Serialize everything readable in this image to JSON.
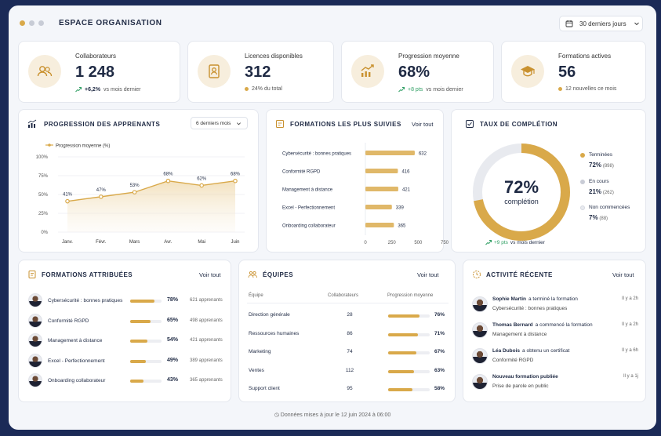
{
  "header": {
    "title": "ESPACE ORGANISATION",
    "period": "30 derniers jours"
  },
  "kpis": [
    {
      "label": "Collaborateurs",
      "value": "1 248",
      "delta": "+6,2%",
      "sub": "vs mois dernier",
      "icon": "users-icon"
    },
    {
      "label": "Licences disponibles",
      "value": "312",
      "delta": "",
      "sub": "24% du total",
      "icon": "license-icon"
    },
    {
      "label": "Progression moyenne",
      "value": "68%",
      "delta": "+8 pts",
      "sub": "vs mois dernier",
      "icon": "trend-up-icon"
    },
    {
      "label": "Formations actives",
      "value": "56",
      "delta": "",
      "sub": "12 nouvelles ce mois",
      "icon": "graduation-cap-icon"
    }
  ],
  "progression": {
    "title": "PROGRESSION DES APPRENANTS",
    "filter": "6 derniers mois"
  },
  "chart_data": {
    "type": "area",
    "categories": [
      "Janv.",
      "Févr.",
      "Mars",
      "Avr.",
      "Mai",
      "Juin"
    ],
    "series": [
      {
        "name": "Progression moyenne (%)",
        "values": [
          41,
          47,
          53,
          68,
          62,
          68
        ]
      }
    ],
    "data_labels": [
      "41%",
      "47%",
      "53%",
      "68%",
      "62%",
      "68%"
    ],
    "yticks": [
      "100%",
      "75%",
      "50%",
      "25%",
      "0%"
    ],
    "ylim": [
      0,
      100
    ],
    "grid": true,
    "legend": "top-left",
    "color": "#d9a94a"
  },
  "top_trainings": {
    "title": "FORMATIONS LES PLUS SUIVIES",
    "link": "Voir tout",
    "items": [
      {
        "label": "Cybersécurité : bonnes pratiques",
        "value": 632,
        "display": "632"
      },
      {
        "label": "Conformité RGPD",
        "value": 416,
        "display": "416"
      },
      {
        "label": "Management à distance",
        "value": 421,
        "display": "421"
      },
      {
        "label": "Excel - Perfectionnement",
        "value": 339,
        "display": "339"
      },
      {
        "label": "Onboarding collaborateur",
        "value": 365,
        "display": "365"
      }
    ],
    "ticks": [
      "0",
      "250",
      "500",
      "750"
    ],
    "xmax": 750
  },
  "completion": {
    "title": "TAUX DE COMPLÉTION",
    "value": "72%",
    "caption": "complétion",
    "rate": 72,
    "legend": [
      {
        "label": "Terminées",
        "pct": "72%",
        "count": "(898)",
        "color": "#d9a94a"
      },
      {
        "label": "En cours",
        "pct": "21%",
        "count": "(262)",
        "color": "#c9ccd6"
      },
      {
        "label": "Non commencées",
        "pct": "7%",
        "count": "(88)",
        "color": "#e8eaef"
      }
    ],
    "delta": "+9 pts",
    "delta_sub": "vs mois dernier"
  },
  "assigned": {
    "title": "FORMATIONS ATTRIBUÉES",
    "link": "Voir tout",
    "items": [
      {
        "label": "Cybersécurité : bonnes pratiques",
        "pct": "78%",
        "progress": 78,
        "learners": "621 apprenants"
      },
      {
        "label": "Conformité RGPD",
        "pct": "65%",
        "progress": 65,
        "learners": "498 apprenants"
      },
      {
        "label": "Management à distance",
        "pct": "54%",
        "progress": 54,
        "learners": "421 apprenants"
      },
      {
        "label": "Excel - Perfectionnement",
        "pct": "49%",
        "progress": 49,
        "learners": "389 apprenants"
      },
      {
        "label": "Onboarding collaborateur",
        "pct": "43%",
        "progress": 43,
        "learners": "365 apprenants"
      }
    ]
  },
  "teams": {
    "title": "ÉQUIPES",
    "link": "Voir tout",
    "headers": [
      "Équipe",
      "Collaborateurs",
      "Progression moyenne"
    ],
    "rows": [
      {
        "name": "Direction générale",
        "count": "28",
        "pct": "76%",
        "progress": 76
      },
      {
        "name": "Ressources humaines",
        "count": "86",
        "pct": "71%",
        "progress": 71
      },
      {
        "name": "Marketing",
        "count": "74",
        "pct": "67%",
        "progress": 67
      },
      {
        "name": "Ventes",
        "count": "112",
        "pct": "63%",
        "progress": 63
      },
      {
        "name": "Support client",
        "count": "95",
        "pct": "58%",
        "progress": 58
      }
    ]
  },
  "activity": {
    "title": "ACTIVITÉ RÉCENTE",
    "link": "Voir tout",
    "items": [
      {
        "who": "Sophie Martin",
        "action": "a terminé la formation",
        "detail": "Cybersécurité : bonnes pratiques",
        "time": "Il y a 2h"
      },
      {
        "who": "Thomas Bernard",
        "action": "a commencé la formation",
        "detail": "Management à distance",
        "time": "Il y a 2h"
      },
      {
        "who": "Léa Dubois",
        "action": "a obtenu un certificat",
        "detail": "Conformité RGPD",
        "time": "Il y a 6h"
      },
      {
        "who": "Nouveau formation publiée",
        "action": "",
        "detail": "Prise de parole en public",
        "time": "Il y a 1j"
      }
    ]
  },
  "footer": {
    "text": "Données mises à jour le 12 juin 2024 à 06:00"
  }
}
